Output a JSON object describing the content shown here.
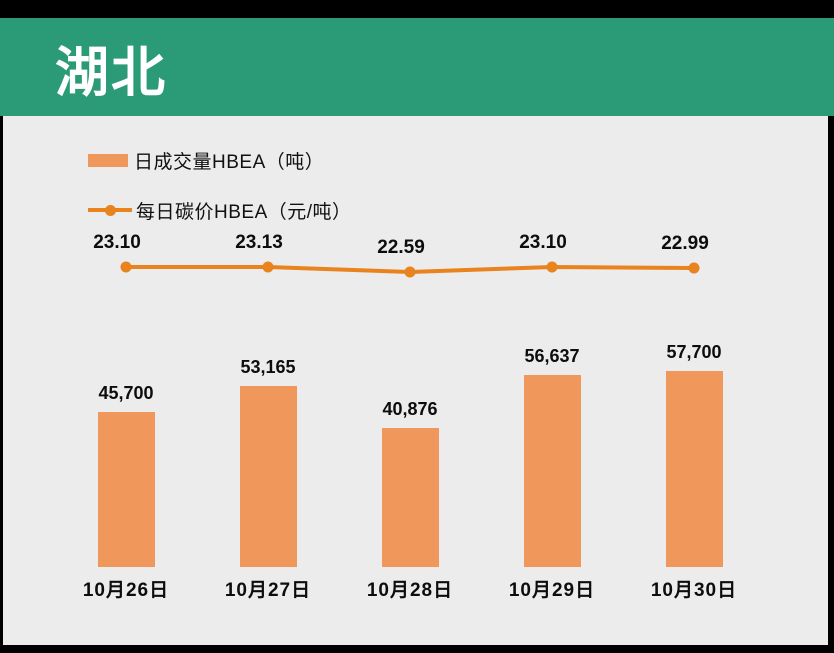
{
  "header": {
    "title": "湖北"
  },
  "legend": {
    "bar_label": "日成交量HBEA（吨）",
    "line_label": "每日碳价HBEA（元/吨）"
  },
  "colors": {
    "frame_black": "#000000",
    "header_green": "#2B9B77",
    "background_gray": "#ECECEC",
    "bar_orange": "#F0985C",
    "line_orange": "#E8831D",
    "text_black": "#0D0D0D"
  },
  "chart_data": {
    "type": "bar",
    "subtype": "bar-line combo",
    "title": "湖北",
    "categories": [
      "10月26日",
      "10月27日",
      "10月28日",
      "10月29日",
      "10月30日"
    ],
    "series": [
      {
        "name": "日成交量HBEA（吨）",
        "type": "bar",
        "values": [
          45700,
          53165,
          40876,
          56637,
          57700
        ],
        "labels": [
          "45,700",
          "53,165",
          "40,876",
          "56,637",
          "57,700"
        ]
      },
      {
        "name": "每日碳价HBEA（元/吨）",
        "type": "line",
        "values": [
          23.1,
          23.13,
          22.59,
          23.1,
          22.99
        ],
        "labels": [
          "23.10",
          "23.13",
          "22.59",
          "23.10",
          "22.99"
        ]
      }
    ],
    "xlabel": "",
    "ylabel": "",
    "axes_hidden": true,
    "grid": false,
    "legend_position": "top-left",
    "data_labels": "shown above bars and points"
  }
}
